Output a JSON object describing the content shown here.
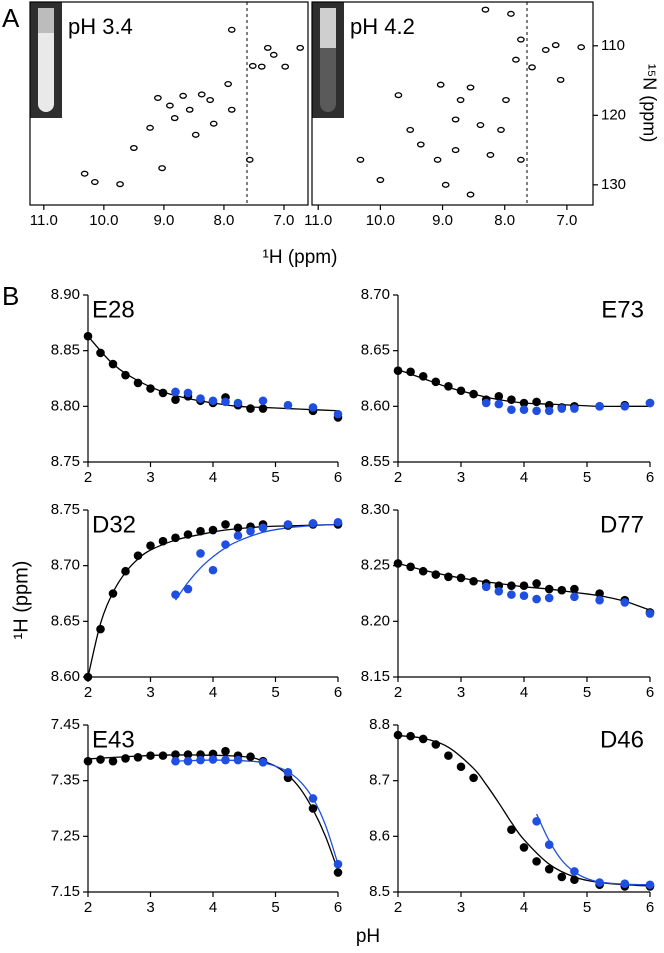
{
  "panel_labels": [
    "A",
    "B"
  ],
  "chart_data": [
    {
      "type": "spectrum",
      "title": "pH 3.4",
      "xlabel": "¹H (ppm)",
      "xlim": [
        11.23,
        6.6
      ],
      "ylim": [
        132.9,
        103.7
      ],
      "xticks": [
        {
          "value": 11,
          "label": "11.0"
        },
        {
          "value": 10,
          "label": "10.0"
        },
        {
          "value": 9,
          "label": "9.0"
        },
        {
          "value": 8,
          "label": "8.0"
        },
        {
          "value": 7,
          "label": "7.0"
        }
      ],
      "series": [
        {
          "mode": "contours",
          "color": "#000000",
          "x": [
            7.87,
            7.27,
            7.17,
            6.73,
            7.52,
            7.37,
            6.98,
            7.93,
            8.68,
            9.1,
            8.37,
            8.23,
            8.9,
            8.57,
            8.82,
            8.17,
            9.23,
            8.47,
            9.5,
            10.32,
            10.15,
            9.73,
            9.03,
            7.57,
            7.87
          ],
          "values": [
            107.7,
            110.3,
            111.3,
            110.3,
            112.9,
            113,
            113,
            115.5,
            117.2,
            117.5,
            117,
            117.8,
            118.6,
            119.2,
            120.4,
            121.2,
            121.8,
            122.8,
            124.7,
            128.4,
            129.6,
            129.9,
            127.6,
            126.4,
            119.2
          ]
        }
      ]
    },
    {
      "type": "spectrum",
      "title": "pH 4.2",
      "ylabel": "¹⁵N (ppm)",
      "xlim": [
        11.1,
        6.58
      ],
      "ylim": [
        132.9,
        103.7
      ],
      "xticks": [
        {
          "value": 11,
          "label": "11.0"
        },
        {
          "value": 10,
          "label": "10.0"
        },
        {
          "value": 9,
          "label": "9.0"
        },
        {
          "value": 8,
          "label": "8.0"
        },
        {
          "value": 7,
          "label": "7.0"
        }
      ],
      "yticks": [
        110,
        120,
        130
      ],
      "series": [
        {
          "mode": "contours",
          "color": "#000000",
          "x": [
            7.18,
            6.77,
            7.34,
            7.74,
            7.82,
            7.56,
            8.31,
            7.9,
            9.03,
            8.55,
            9.71,
            8.71,
            7.98,
            8.79,
            8.39,
            8.06,
            9.35,
            8.79,
            8.23,
            10,
            8.95,
            8.55,
            10.32,
            7.74,
            9.08,
            7.1,
            9.52
          ],
          "values": [
            109.9,
            110.2,
            110.6,
            109.1,
            112,
            113.1,
            104.8,
            105.4,
            115.6,
            116,
            117.1,
            117.8,
            117.8,
            120.6,
            121.4,
            122.1,
            124.2,
            125,
            125.7,
            129.3,
            130,
            131.4,
            126.4,
            126.4,
            126.4,
            114.9,
            122.1
          ]
        }
      ]
    },
    {
      "type": "scatter",
      "title": "E28",
      "title_corner": "top-left",
      "xlim": [
        2,
        6
      ],
      "ylim": [
        8.75,
        8.9
      ],
      "xticks": [
        2,
        3,
        4,
        5,
        6
      ],
      "yticks": [
        8.75,
        {
          "value": 8.8,
          "label": "8.80"
        },
        8.85,
        {
          "value": 8.9,
          "label": "8.90"
        }
      ],
      "series": [
        {
          "mode": "line",
          "color": "#000000",
          "x": [
            2,
            2.4,
            2.8,
            3.2,
            3.6,
            4,
            4.4,
            4.8,
            5.2,
            5.6,
            6
          ],
          "values": [
            8.863,
            8.838,
            8.823,
            8.813,
            8.807,
            8.803,
            8.8,
            8.799,
            8.798,
            8.797,
            8.796
          ]
        },
        {
          "mode": "markers",
          "color": "#000000",
          "x": [
            2,
            2.2,
            2.4,
            2.6,
            2.8,
            3,
            3.2,
            3.4,
            3.6,
            3.8,
            4,
            4.2,
            4.4,
            4.6,
            4.8,
            5.6,
            6
          ],
          "values": [
            8.863,
            8.848,
            8.838,
            8.828,
            8.821,
            8.816,
            8.812,
            8.806,
            8.809,
            8.805,
            8.803,
            8.808,
            8.801,
            8.798,
            8.798,
            8.796,
            8.79
          ]
        },
        {
          "mode": "markers",
          "color": "#1f4fe0",
          "x": [
            3.4,
            3.6,
            3.8,
            4,
            4.2,
            4.4,
            4.8,
            5.2,
            5.6,
            6
          ],
          "values": [
            8.813,
            8.812,
            8.807,
            8.805,
            8.804,
            8.803,
            8.805,
            8.801,
            8.799,
            8.793
          ]
        }
      ]
    },
    {
      "type": "scatter",
      "title": "E73",
      "title_corner": "top-right",
      "xlim": [
        2,
        6
      ],
      "ylim": [
        8.55,
        8.7
      ],
      "xticks": [
        2,
        3,
        4,
        5,
        6
      ],
      "yticks": [
        8.55,
        {
          "value": 8.6,
          "label": "8.60"
        },
        8.65,
        {
          "value": 8.7,
          "label": "8.70"
        }
      ],
      "series": [
        {
          "mode": "line",
          "color": "#000000",
          "x": [
            2,
            2.4,
            2.8,
            3.2,
            3.6,
            4,
            4.4,
            4.8,
            5.2,
            5.6,
            6
          ],
          "values": [
            8.633,
            8.625,
            8.617,
            8.611,
            8.606,
            8.603,
            8.602,
            8.601,
            8.6,
            8.6,
            8.6
          ]
        },
        {
          "mode": "markers",
          "color": "#000000",
          "x": [
            2,
            2.2,
            2.4,
            2.6,
            2.8,
            3,
            3.2,
            3.4,
            3.6,
            3.8,
            4,
            4.2,
            4.4,
            4.6,
            4.8,
            5.2,
            5.6,
            6
          ],
          "values": [
            8.632,
            8.631,
            8.627,
            8.622,
            8.618,
            8.614,
            8.611,
            8.606,
            8.609,
            8.606,
            8.603,
            8.604,
            8.601,
            8.599,
            8.6,
            8.6,
            8.601,
            8.603
          ]
        },
        {
          "mode": "markers",
          "color": "#1f4fe0",
          "x": [
            3.4,
            3.6,
            3.8,
            4,
            4.2,
            4.4,
            4.6,
            4.8,
            5.2,
            5.6,
            6
          ],
          "values": [
            8.603,
            8.602,
            8.597,
            8.597,
            8.596,
            8.596,
            8.598,
            8.598,
            8.6,
            8.6,
            8.603
          ]
        }
      ]
    },
    {
      "type": "scatter",
      "title": "D32",
      "title_corner": "top-left",
      "ylabel": "¹H (ppm)",
      "xlim": [
        2,
        6
      ],
      "ylim": [
        8.6,
        8.75
      ],
      "xticks": [
        2,
        3,
        4,
        5,
        6
      ],
      "yticks": [
        {
          "value": 8.6,
          "label": "8.60"
        },
        8.65,
        {
          "value": 8.7,
          "label": "8.70"
        },
        8.75
      ],
      "series": [
        {
          "mode": "line",
          "color": "#000000",
          "x": [
            2,
            2.2,
            2.4,
            2.6,
            2.8,
            3,
            3.4,
            3.8,
            4.2,
            4.8,
            5.4,
            6
          ],
          "values": [
            8.6,
            8.648,
            8.676,
            8.694,
            8.706,
            8.714,
            8.723,
            8.728,
            8.732,
            8.735,
            8.736,
            8.737
          ]
        },
        {
          "mode": "line",
          "color": "#1f4fe0",
          "x": [
            3.4,
            3.6,
            3.8,
            4,
            4.2,
            4.4,
            4.8,
            5.2,
            5.6,
            6
          ],
          "values": [
            8.669,
            8.685,
            8.698,
            8.708,
            8.716,
            8.722,
            8.73,
            8.734,
            8.736,
            8.737
          ]
        },
        {
          "mode": "markers",
          "color": "#000000",
          "x": [
            2,
            2.2,
            2.4,
            2.6,
            2.8,
            3,
            3.2,
            3.4,
            3.6,
            3.8,
            4,
            4.2,
            4.4,
            4.6,
            4.8,
            5.2,
            5.6,
            6
          ],
          "values": [
            8.6,
            8.643,
            8.675,
            8.695,
            8.709,
            8.718,
            8.722,
            8.725,
            8.728,
            8.731,
            8.732,
            8.737,
            8.734,
            8.735,
            8.737,
            8.736,
            8.737,
            8.737
          ]
        },
        {
          "mode": "markers",
          "color": "#1f4fe0",
          "x": [
            3.4,
            3.6,
            3.8,
            4,
            4.2,
            4.4,
            4.6,
            4.8,
            5.2,
            5.6,
            6
          ],
          "values": [
            8.674,
            8.679,
            8.711,
            8.696,
            8.719,
            8.727,
            8.731,
            8.734,
            8.737,
            8.738,
            8.739
          ]
        }
      ]
    },
    {
      "type": "scatter",
      "title": "D77",
      "title_corner": "top-right",
      "xlim": [
        2,
        6
      ],
      "ylim": [
        8.15,
        8.3
      ],
      "xticks": [
        2,
        3,
        4,
        5,
        6
      ],
      "yticks": [
        8.15,
        {
          "value": 8.2,
          "label": "8.20"
        },
        8.25,
        {
          "value": 8.3,
          "label": "8.30"
        }
      ],
      "series": [
        {
          "mode": "line",
          "color": "#000000",
          "x": [
            2,
            2.4,
            2.8,
            3.2,
            3.6,
            4,
            4.4,
            4.8,
            5.2,
            5.6,
            6
          ],
          "values": [
            8.252,
            8.246,
            8.241,
            8.237,
            8.234,
            8.231,
            8.229,
            8.226,
            8.223,
            8.218,
            8.21
          ]
        },
        {
          "mode": "markers",
          "color": "#000000",
          "x": [
            2,
            2.2,
            2.4,
            2.6,
            2.8,
            3,
            3.2,
            3.4,
            3.6,
            3.8,
            4,
            4.2,
            4.4,
            4.6,
            4.8,
            5.2,
            5.6,
            6
          ],
          "values": [
            8.252,
            8.249,
            8.245,
            8.242,
            8.24,
            8.239,
            8.236,
            8.234,
            8.232,
            8.232,
            8.232,
            8.234,
            8.229,
            8.228,
            8.229,
            8.225,
            8.219,
            8.208
          ]
        },
        {
          "mode": "markers",
          "color": "#1f4fe0",
          "x": [
            3.4,
            3.6,
            3.8,
            4,
            4.2,
            4.4,
            4.8,
            5.2,
            5.6,
            6
          ],
          "values": [
            8.231,
            8.227,
            8.224,
            8.223,
            8.22,
            8.221,
            8.222,
            8.219,
            8.217,
            8.207
          ]
        }
      ]
    },
    {
      "type": "scatter",
      "title": "E43",
      "title_corner": "top-left",
      "xlabel": "pH",
      "xlim": [
        2,
        6
      ],
      "ylim": [
        7.15,
        7.45
      ],
      "xticks": [
        2,
        3,
        4,
        5,
        6
      ],
      "yticks": [
        7.15,
        7.25,
        7.35,
        7.45
      ],
      "series": [
        {
          "mode": "line",
          "color": "#000000",
          "x": [
            2,
            2.6,
            3.2,
            3.8,
            4.2,
            4.6,
            4.8,
            5,
            5.2,
            5.4,
            5.6,
            5.8,
            6
          ],
          "values": [
            7.389,
            7.393,
            7.396,
            7.396,
            7.395,
            7.392,
            7.385,
            7.376,
            7.36,
            7.335,
            7.298,
            7.25,
            7.188
          ]
        },
        {
          "mode": "line",
          "color": "#1f4fe0",
          "x": [
            3.4,
            4,
            4.6,
            4.8,
            5,
            5.2,
            5.4,
            5.6,
            5.8,
            6
          ],
          "values": [
            7.385,
            7.387,
            7.385,
            7.382,
            7.376,
            7.366,
            7.348,
            7.318,
            7.27,
            7.2
          ]
        },
        {
          "mode": "markers",
          "color": "#000000",
          "x": [
            2,
            2.2,
            2.4,
            2.6,
            2.8,
            3,
            3.2,
            3.4,
            3.6,
            3.8,
            4,
            4.2,
            4.4,
            4.6,
            4.8,
            5.2,
            5.6,
            6
          ],
          "values": [
            7.385,
            7.388,
            7.385,
            7.39,
            7.392,
            7.395,
            7.395,
            7.397,
            7.397,
            7.397,
            7.398,
            7.403,
            7.395,
            7.393,
            7.385,
            7.355,
            7.3,
            7.185
          ]
        },
        {
          "mode": "markers",
          "color": "#1f4fe0",
          "x": [
            3.4,
            3.6,
            3.8,
            4,
            4.2,
            4.4,
            4.8,
            5.2,
            5.6,
            6
          ],
          "values": [
            7.385,
            7.385,
            7.387,
            7.388,
            7.387,
            7.387,
            7.383,
            7.365,
            7.318,
            7.2
          ]
        }
      ]
    },
    {
      "type": "scatter",
      "title": "D46",
      "title_corner": "top-right",
      "xlim": [
        2,
        6
      ],
      "ylim": [
        8.5,
        8.8
      ],
      "xticks": [
        2,
        3,
        4,
        5,
        6
      ],
      "yticks": [
        8.5,
        8.6,
        8.7,
        8.8
      ],
      "series": [
        {
          "mode": "line",
          "color": "#000000",
          "x": [
            2,
            2.4,
            2.8,
            3.2,
            3.4,
            3.6,
            3.8,
            4,
            4.4,
            4.8,
            5.2,
            5.6,
            6
          ],
          "values": [
            8.781,
            8.776,
            8.76,
            8.722,
            8.693,
            8.66,
            8.625,
            8.594,
            8.55,
            8.527,
            8.517,
            8.513,
            8.511
          ]
        },
        {
          "mode": "line",
          "color": "#1f4fe0",
          "x": [
            4.2,
            4.4,
            4.6,
            4.8,
            5,
            5.2,
            5.6,
            6
          ],
          "values": [
            8.64,
            8.592,
            8.557,
            8.536,
            8.524,
            8.518,
            8.514,
            8.513
          ]
        },
        {
          "mode": "markers",
          "color": "#000000",
          "x": [
            2,
            2.2,
            2.4,
            2.6,
            2.8,
            3,
            3.2,
            3.8,
            4,
            4.2,
            4.4,
            4.6,
            4.8,
            5.2,
            5.6,
            6
          ],
          "values": [
            8.782,
            8.78,
            8.775,
            8.765,
            8.745,
            8.725,
            8.705,
            8.612,
            8.58,
            8.555,
            8.541,
            8.527,
            8.522,
            8.513,
            8.51,
            8.51
          ]
        },
        {
          "mode": "markers",
          "color": "#1f4fe0",
          "x": [
            4.2,
            4.4,
            4.8,
            5.2,
            5.6,
            6
          ],
          "values": [
            8.627,
            8.585,
            8.537,
            8.517,
            8.515,
            8.513
          ]
        }
      ]
    }
  ]
}
